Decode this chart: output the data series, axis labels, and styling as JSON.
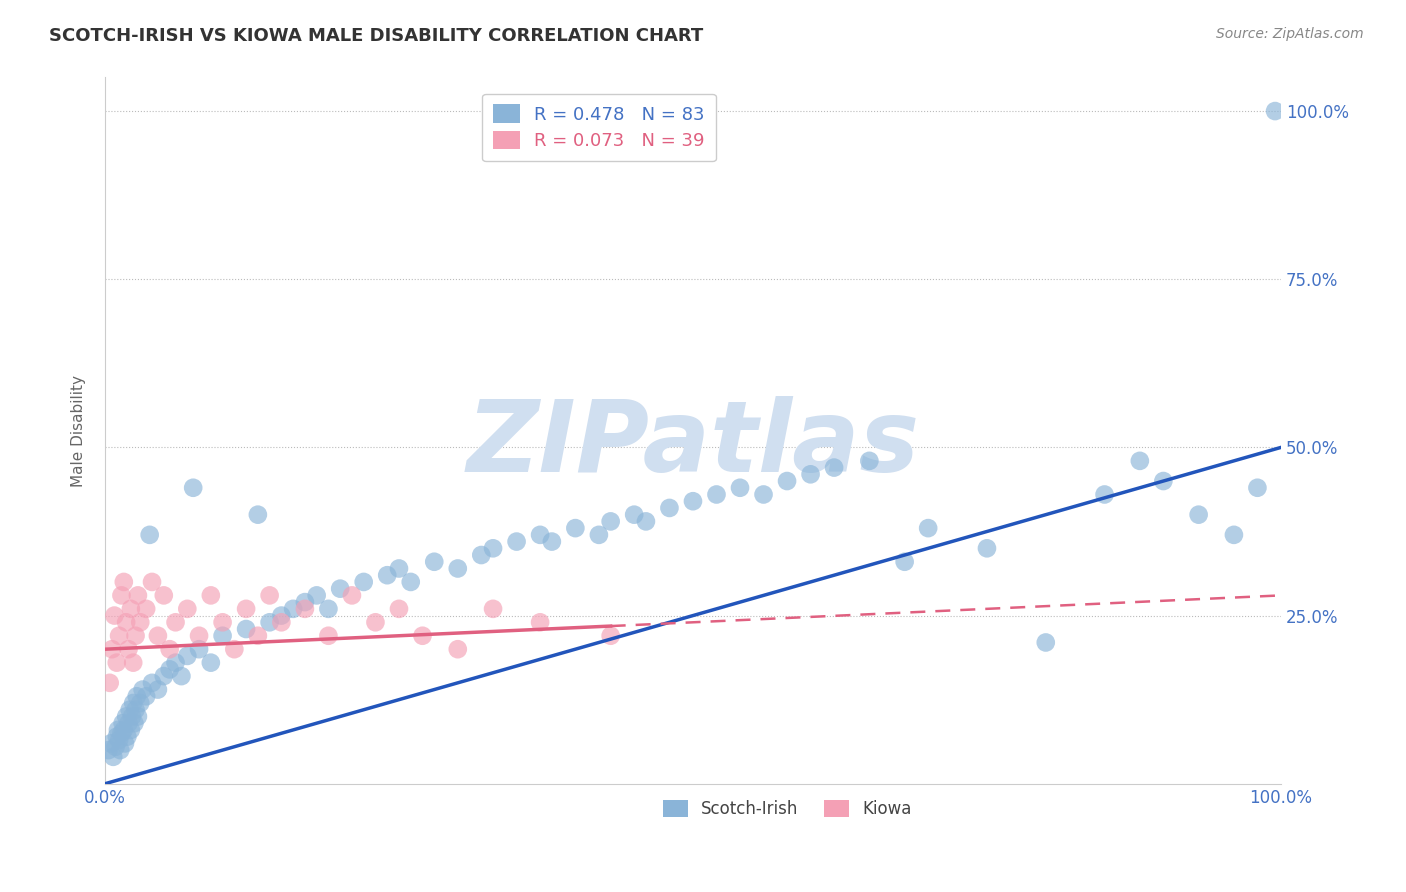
{
  "title": "SCOTCH-IRISH VS KIOWA MALE DISABILITY CORRELATION CHART",
  "source_text": "Source: ZipAtlas.com",
  "ylabel": "Male Disability",
  "xlim": [
    0,
    100
  ],
  "ylim": [
    0,
    105
  ],
  "scotch_irish_R": 0.478,
  "scotch_irish_N": 83,
  "kiowa_R": 0.073,
  "kiowa_N": 39,
  "scotch_irish_color": "#8ab4d8",
  "kiowa_color": "#f4a0b5",
  "scotch_irish_line_color": "#2255bb",
  "kiowa_line_color": "#e06080",
  "watermark_text": "ZIPatlas",
  "watermark_color": "#d0dff0",
  "legend_label_blue": "Scotch-Irish",
  "legend_label_pink": "Kiowa",
  "scotch_irish_x": [
    0.3,
    0.5,
    0.7,
    0.9,
    1.0,
    1.1,
    1.2,
    1.3,
    1.4,
    1.5,
    1.6,
    1.7,
    1.8,
    1.9,
    2.0,
    2.1,
    2.2,
    2.3,
    2.4,
    2.5,
    2.6,
    2.7,
    2.8,
    3.0,
    3.2,
    3.5,
    4.0,
    4.5,
    5.0,
    5.5,
    6.0,
    6.5,
    7.0,
    8.0,
    9.0,
    10.0,
    12.0,
    14.0,
    15.0,
    16.0,
    17.0,
    18.0,
    19.0,
    20.0,
    22.0,
    24.0,
    25.0,
    26.0,
    28.0,
    30.0,
    32.0,
    33.0,
    35.0,
    37.0,
    38.0,
    40.0,
    42.0,
    43.0,
    45.0,
    46.0,
    48.0,
    50.0,
    52.0,
    54.0,
    56.0,
    58.0,
    60.0,
    62.0,
    65.0,
    68.0,
    70.0,
    75.0,
    80.0,
    85.0,
    88.0,
    90.0,
    93.0,
    96.0,
    98.0,
    99.5,
    3.8,
    7.5,
    13.0
  ],
  "scotch_irish_y": [
    5.0,
    6.0,
    4.0,
    5.5,
    7.0,
    8.0,
    6.5,
    5.0,
    7.5,
    9.0,
    8.0,
    6.0,
    10.0,
    7.0,
    9.0,
    11.0,
    8.0,
    10.0,
    12.0,
    9.0,
    11.0,
    13.0,
    10.0,
    12.0,
    14.0,
    13.0,
    15.0,
    14.0,
    16.0,
    17.0,
    18.0,
    16.0,
    19.0,
    20.0,
    18.0,
    22.0,
    23.0,
    24.0,
    25.0,
    26.0,
    27.0,
    28.0,
    26.0,
    29.0,
    30.0,
    31.0,
    32.0,
    30.0,
    33.0,
    32.0,
    34.0,
    35.0,
    36.0,
    37.0,
    36.0,
    38.0,
    37.0,
    39.0,
    40.0,
    39.0,
    41.0,
    42.0,
    43.0,
    44.0,
    43.0,
    45.0,
    46.0,
    47.0,
    48.0,
    33.0,
    38.0,
    35.0,
    21.0,
    43.0,
    48.0,
    45.0,
    40.0,
    37.0,
    44.0,
    100.0,
    37.0,
    44.0,
    40.0
  ],
  "kiowa_x": [
    0.4,
    0.6,
    0.8,
    1.0,
    1.2,
    1.4,
    1.6,
    1.8,
    2.0,
    2.2,
    2.4,
    2.6,
    2.8,
    3.0,
    3.5,
    4.0,
    4.5,
    5.0,
    5.5,
    6.0,
    7.0,
    8.0,
    9.0,
    10.0,
    11.0,
    12.0,
    13.0,
    14.0,
    15.0,
    17.0,
    19.0,
    21.0,
    23.0,
    25.0,
    27.0,
    30.0,
    33.0,
    37.0,
    43.0
  ],
  "kiowa_y": [
    15.0,
    20.0,
    25.0,
    18.0,
    22.0,
    28.0,
    30.0,
    24.0,
    20.0,
    26.0,
    18.0,
    22.0,
    28.0,
    24.0,
    26.0,
    30.0,
    22.0,
    28.0,
    20.0,
    24.0,
    26.0,
    22.0,
    28.0,
    24.0,
    20.0,
    26.0,
    22.0,
    28.0,
    24.0,
    26.0,
    22.0,
    28.0,
    24.0,
    26.0,
    22.0,
    20.0,
    26.0,
    24.0,
    22.0
  ],
  "blue_line_x0": 0,
  "blue_line_y0": 0,
  "blue_line_x1": 100,
  "blue_line_y1": 50,
  "pink_line_x0": 0,
  "pink_line_y0": 20,
  "pink_line_x1": 100,
  "pink_line_y1": 28,
  "pink_solid_end_x": 43
}
